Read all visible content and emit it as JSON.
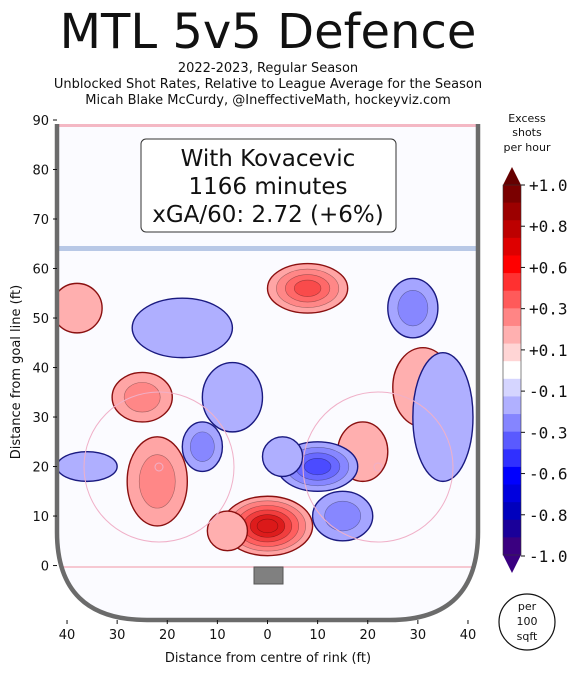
{
  "header": {
    "title": "MTL 5v5 Defence",
    "subtitle_lines": [
      "2022-2023, Regular Season",
      "Unblocked Shot Rates, Relative to League Average for the Season",
      "Micah Blake McCurdy, @IneffectiveMath, hockeyviz.com"
    ]
  },
  "annotation": {
    "line1": "With Kovacevic",
    "line2": "1166 minutes",
    "line3": "xGA/60: 2.72 (+6%)"
  },
  "colorbar": {
    "title_lines": [
      "Excess",
      "shots",
      "per hour"
    ],
    "labels": [
      "+1.0",
      "+0.8",
      "+0.6",
      "+0.3",
      "+0.1",
      "-0.1",
      "-0.3",
      "-0.6",
      "-0.8",
      "-1.0"
    ],
    "colors": [
      "#7a0000",
      "#9c0000",
      "#bd0000",
      "#de0000",
      "#ff0000",
      "#ff3030",
      "#ff5a5a",
      "#ff8585",
      "#ffb0b0",
      "#ffd5d5",
      "#ffffff",
      "#d5d5ff",
      "#b0b0ff",
      "#8585ff",
      "#5a5aff",
      "#3030ff",
      "#0000ff",
      "#0000de",
      "#0000bd",
      "#1a0099",
      "#3a0080"
    ],
    "unit_lines": [
      "per",
      "100",
      "sqft"
    ]
  },
  "chart_data": {
    "type": "heatmap",
    "xlabel": "Distance from centre of rink (ft)",
    "ylabel": "Distance from goal line (ft)",
    "xlim": [
      42,
      -42
    ],
    "ylim": [
      -11,
      90
    ],
    "xticks": [
      40,
      30,
      20,
      10,
      0,
      10,
      20,
      30,
      40
    ],
    "yticks": [
      0,
      10,
      20,
      30,
      40,
      50,
      60,
      70,
      80,
      90
    ],
    "colorscale_range": [
      -1.0,
      1.0
    ],
    "regions": [
      {
        "x": 0,
        "y": 8,
        "rx": 9,
        "ry": 6,
        "value": 1.0
      },
      {
        "x": -8,
        "y": 56,
        "rx": 8,
        "ry": 5,
        "value": 0.6
      },
      {
        "x": 22,
        "y": 17,
        "rx": 6,
        "ry": 9,
        "value": 0.3
      },
      {
        "x": 25,
        "y": 34,
        "rx": 6,
        "ry": 5,
        "value": 0.3
      },
      {
        "x": -19,
        "y": 23,
        "rx": 5,
        "ry": 6,
        "value": 0.1
      },
      {
        "x": -31,
        "y": 36,
        "rx": 6,
        "ry": 8,
        "value": 0.1
      },
      {
        "x": 38,
        "y": 52,
        "rx": 5,
        "ry": 5,
        "value": 0.1
      },
      {
        "x": 8,
        "y": 7,
        "rx": 4,
        "ry": 4,
        "value": 0.1
      },
      {
        "x": -10,
        "y": 20,
        "rx": 8,
        "ry": 5,
        "value": -0.6
      },
      {
        "x": -15,
        "y": 10,
        "rx": 6,
        "ry": 5,
        "value": -0.3
      },
      {
        "x": -29,
        "y": 52,
        "rx": 5,
        "ry": 6,
        "value": -0.3
      },
      {
        "x": 13,
        "y": 24,
        "rx": 4,
        "ry": 5,
        "value": -0.3
      },
      {
        "x": -35,
        "y": 30,
        "rx": 6,
        "ry": 13,
        "value": -0.1
      },
      {
        "x": 17,
        "y": 48,
        "rx": 10,
        "ry": 6,
        "value": -0.1
      },
      {
        "x": 36,
        "y": 20,
        "rx": 6,
        "ry": 3,
        "value": -0.1
      },
      {
        "x": 7,
        "y": 34,
        "rx": 6,
        "ry": 7,
        "value": -0.1
      },
      {
        "x": -3,
        "y": 22,
        "rx": 4,
        "ry": 4,
        "value": -0.1
      }
    ]
  }
}
